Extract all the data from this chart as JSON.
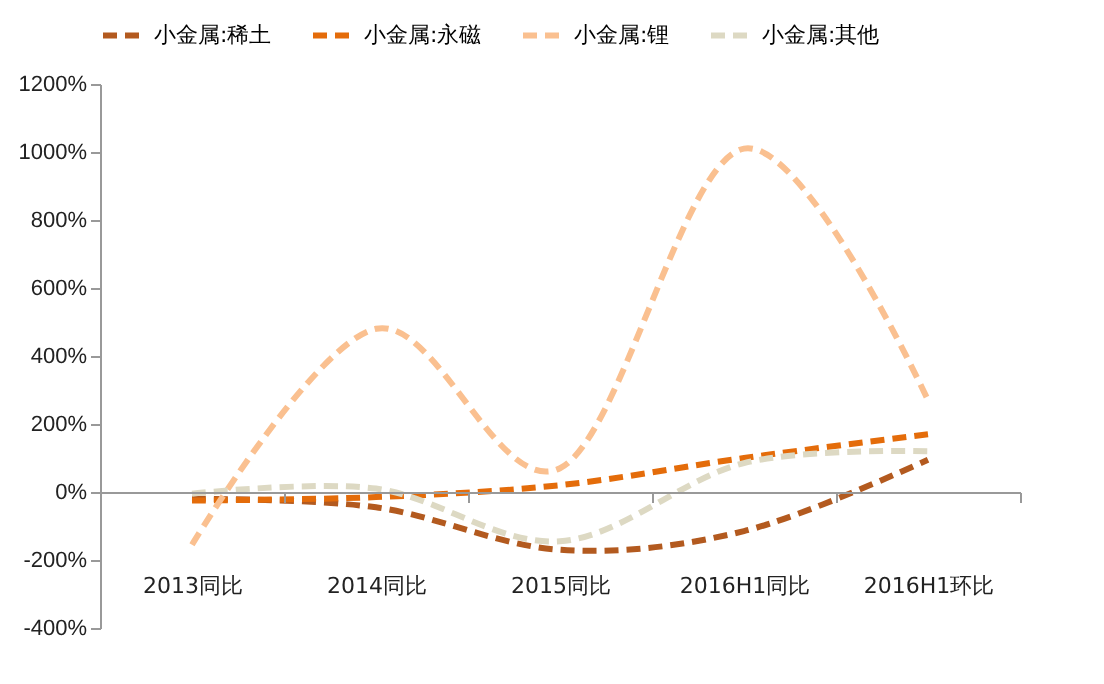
{
  "chart_data": {
    "type": "line",
    "categories": [
      "2013同比",
      "2014同比",
      "2015同比",
      "2016H1同比",
      "2016H1环比"
    ],
    "series": [
      {
        "name": "小金属:稀土",
        "color": "#b35a1f",
        "values": [
          -20,
          -45,
          -170,
          -115,
          95
        ]
      },
      {
        "name": "小金属:永磁",
        "color": "#e46c0a",
        "values": [
          -25,
          -15,
          20,
          100,
          170
        ]
      },
      {
        "name": "小金属:锂",
        "color": "#fac090",
        "values": [
          -155,
          480,
          70,
          1010,
          270
        ]
      },
      {
        "name": "小金属:其他",
        "color": "#ddd9c3",
        "values": [
          -5,
          10,
          -145,
          85,
          120
        ]
      }
    ],
    "ylim": [
      -400,
      1200
    ],
    "yticks": [
      {
        "value": -400,
        "label": "-400%"
      },
      {
        "value": -200,
        "label": "-200%"
      },
      {
        "value": 0,
        "label": "0%"
      },
      {
        "value": 200,
        "label": "200%"
      },
      {
        "value": 400,
        "label": "400%"
      },
      {
        "value": 600,
        "label": "600%"
      },
      {
        "value": 800,
        "label": "800%"
      },
      {
        "value": 1000,
        "label": "1000%"
      },
      {
        "value": 1200,
        "label": "1200%"
      }
    ],
    "legend": "top",
    "line_style": "dashed",
    "marker": "none"
  }
}
